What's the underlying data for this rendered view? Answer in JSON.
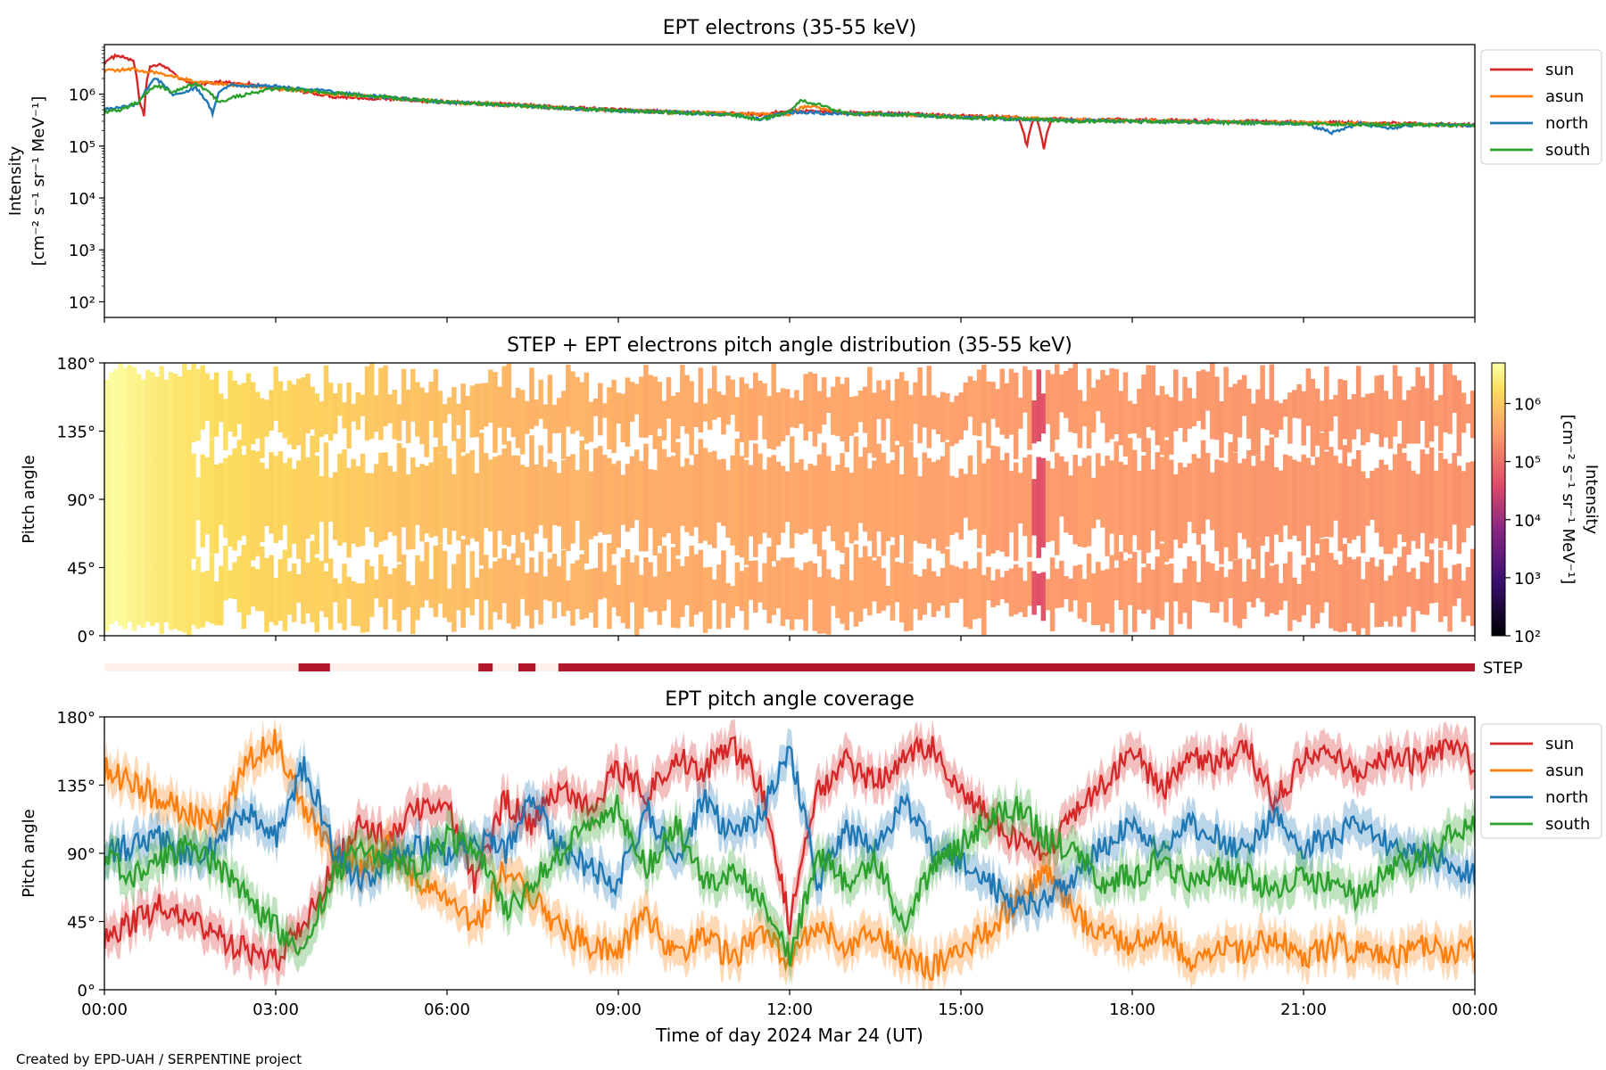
{
  "figure": {
    "xlabel": "Time of day 2024 Mar 24 (UT)",
    "credit": "Created by EPD-UAH / SERPENTINE project",
    "x_tick_labels": [
      "00:00",
      "03:00",
      "06:00",
      "09:00",
      "12:00",
      "15:00",
      "18:00",
      "21:00",
      "00:00"
    ]
  },
  "chart_data": [
    {
      "type": "line",
      "title": "EPT electrons (35-55 keV)",
      "ylabel": "Intensity",
      "ylabel_unit": "[cm⁻² s⁻¹ sr⁻¹ MeV⁻¹]",
      "yscale": "log",
      "ylim": [
        50,
        9000000
      ],
      "y_tick_labels": [
        "10²",
        "10³",
        "10⁴",
        "10⁵",
        "10⁶"
      ],
      "xlim_hours": [
        0,
        24
      ],
      "legend_position": "outside-right",
      "series": [
        {
          "name": "sun",
          "color": "#d62728",
          "x": [
            0,
            0.2,
            0.5,
            0.6,
            0.7,
            0.8,
            1.0,
            1.3,
            1.6,
            2.0,
            2.5,
            3.0,
            3.5,
            4.0,
            4.5,
            5.0,
            6.0,
            7.0,
            8.0,
            9.0,
            10.0,
            11.0,
            11.5,
            12.0,
            13.0,
            14.0,
            15.0,
            16.0,
            16.15,
            16.3,
            16.45,
            16.6,
            17.0,
            18.0,
            19.0,
            20.0,
            21.0,
            22.0,
            23.0,
            24.0
          ],
          "y": [
            4000000,
            5500000,
            4500000,
            800000,
            320000,
            3500000,
            3800000,
            2000000,
            1500000,
            1700000,
            1600000,
            1300000,
            1100000,
            900000,
            850000,
            800000,
            700000,
            650000,
            550000,
            500000,
            450000,
            420000,
            400000,
            480000,
            440000,
            420000,
            380000,
            360000,
            90000,
            360000,
            80000,
            340000,
            320000,
            320000,
            310000,
            300000,
            290000,
            280000,
            270000,
            260000
          ]
        },
        {
          "name": "asun",
          "color": "#ff7f0e",
          "x": [
            0,
            0.5,
            1.0,
            1.5,
            2.0,
            3.0,
            4.0,
            5.0,
            6.0,
            7.0,
            8.0,
            9.0,
            10.0,
            11.0,
            12.0,
            12.3,
            13.0,
            14.0,
            15.0,
            16.0,
            17.0,
            18.0,
            19.0,
            20.0,
            21.0,
            22.0,
            23.0,
            24.0
          ],
          "y": [
            2800000,
            3000000,
            2500000,
            1800000,
            1600000,
            1300000,
            1000000,
            850000,
            700000,
            620000,
            540000,
            480000,
            450000,
            420000,
            400000,
            600000,
            420000,
            400000,
            370000,
            350000,
            320000,
            310000,
            300000,
            290000,
            280000,
            270000,
            260000,
            250000
          ]
        },
        {
          "name": "north",
          "color": "#1f77b4",
          "x": [
            0,
            0.3,
            0.6,
            0.9,
            1.2,
            1.6,
            1.9,
            2.0,
            2.2,
            3.0,
            4.0,
            5.0,
            6.0,
            7.0,
            8.0,
            9.0,
            10.0,
            11.0,
            11.5,
            12.0,
            13.0,
            14.0,
            15.0,
            16.0,
            17.0,
            18.0,
            19.0,
            20.0,
            21.0,
            21.5,
            22.0,
            22.5,
            23.0,
            24.0
          ],
          "y": [
            500000,
            550000,
            650000,
            2000000,
            900000,
            1300000,
            400000,
            1000000,
            1500000,
            1400000,
            1100000,
            850000,
            700000,
            620000,
            540000,
            480000,
            440000,
            400000,
            330000,
            450000,
            420000,
            400000,
            360000,
            330000,
            310000,
            300000,
            290000,
            280000,
            270000,
            180000,
            270000,
            220000,
            260000,
            250000
          ]
        },
        {
          "name": "south",
          "color": "#2ca02c",
          "x": [
            0,
            0.3,
            0.6,
            0.9,
            1.2,
            1.6,
            2.0,
            3.0,
            4.0,
            5.0,
            6.0,
            7.0,
            8.0,
            9.0,
            10.0,
            11.0,
            11.5,
            12.0,
            12.2,
            13.0,
            14.0,
            15.0,
            16.0,
            17.0,
            18.0,
            19.0,
            20.0,
            21.0,
            22.0,
            23.0,
            24.0
          ],
          "y": [
            450000,
            500000,
            700000,
            1500000,
            1100000,
            1600000,
            700000,
            1300000,
            1050000,
            850000,
            700000,
            620000,
            540000,
            480000,
            440000,
            400000,
            320000,
            450000,
            750000,
            420000,
            400000,
            350000,
            330000,
            300000,
            300000,
            290000,
            280000,
            270000,
            260000,
            255000,
            250000
          ]
        }
      ]
    },
    {
      "type": "heatmap",
      "title": "STEP + EPT electrons pitch angle distribution (35-55 keV)",
      "ylabel": "Pitch angle",
      "ylim": [
        0,
        180
      ],
      "y_tick_labels": [
        "0°",
        "45°",
        "90°",
        "135°",
        "180°"
      ],
      "colormap": "inferno",
      "colorbar": {
        "label": "Intensity",
        "unit": "[cm⁻² s⁻¹ sr⁻¹ MeV⁻¹]",
        "scale": "log",
        "range": [
          100,
          5000000
        ],
        "tick_labels": [
          "10²",
          "10³",
          "10⁴",
          "10⁵",
          "10⁶"
        ]
      },
      "time_profile_hours": [
        0,
        1,
        2,
        3,
        5,
        7,
        9,
        12,
        15,
        16.2,
        16.5,
        18,
        21,
        24
      ],
      "time_profile_intensity": [
        4500000,
        2500000,
        1800000,
        1400000,
        900000,
        650000,
        500000,
        420000,
        360000,
        300000,
        320000,
        300000,
        280000,
        260000
      ],
      "dip_hours": [
        16.2,
        16.5
      ],
      "dip_intensity": 25000
    },
    {
      "type": "bar",
      "label": "STEP",
      "orientation": "horizontal-timeline",
      "on_color": "#b2182b",
      "off_color": "#fdf0ea",
      "on_intervals_hours": [
        [
          3.4,
          3.95
        ],
        [
          6.55,
          6.8
        ],
        [
          7.25,
          7.55
        ],
        [
          7.95,
          24
        ]
      ]
    },
    {
      "type": "line",
      "title": "EPT pitch angle coverage",
      "ylabel": "Pitch angle",
      "ylim": [
        0,
        180
      ],
      "y_tick_labels": [
        "0°",
        "45°",
        "90°",
        "135°",
        "180°"
      ],
      "xlim_hours": [
        0,
        24
      ],
      "legend_position": "outside-right",
      "band_halfwidth_deg": 12,
      "series": [
        {
          "name": "sun",
          "color": "#d62728",
          "x": [
            0,
            0.5,
            1.0,
            1.5,
            2.0,
            2.5,
            3.0,
            3.5,
            4.0,
            4.5,
            5.0,
            5.5,
            6.0,
            6.5,
            7.0,
            7.5,
            8.0,
            8.5,
            9.0,
            9.5,
            10.0,
            10.5,
            11.0,
            11.5,
            12.0,
            12.5,
            13.0,
            13.5,
            14.0,
            14.5,
            15.0,
            15.5,
            16.0,
            16.5,
            17.0,
            17.5,
            18.0,
            18.5,
            19.0,
            19.5,
            20.0,
            20.5,
            21.0,
            21.5,
            22.0,
            22.5,
            23.0,
            23.5,
            24.0
          ],
          "y": [
            35,
            45,
            55,
            45,
            35,
            25,
            20,
            45,
            80,
            110,
            100,
            120,
            125,
            70,
            125,
            110,
            135,
            120,
            145,
            130,
            155,
            145,
            160,
            135,
            45,
            130,
            150,
            135,
            155,
            160,
            130,
            115,
            95,
            90,
            120,
            135,
            160,
            130,
            155,
            150,
            160,
            125,
            150,
            160,
            140,
            155,
            150,
            160,
            150
          ]
        },
        {
          "name": "asun",
          "color": "#ff7f0e",
          "x": [
            0,
            0.5,
            1.0,
            1.5,
            2.0,
            2.5,
            3.0,
            3.5,
            4.0,
            4.5,
            5.0,
            5.5,
            6.0,
            6.5,
            7.0,
            7.5,
            8.0,
            8.5,
            9.0,
            9.5,
            10.0,
            10.5,
            11.0,
            11.5,
            12.0,
            12.5,
            13.0,
            13.5,
            14.0,
            14.5,
            15.0,
            15.5,
            16.0,
            16.5,
            17.0,
            17.5,
            18.0,
            18.5,
            19.0,
            19.5,
            20.0,
            20.5,
            21.0,
            21.5,
            22.0,
            22.5,
            23.0,
            23.5,
            24.0
          ],
          "y": [
            145,
            135,
            125,
            115,
            110,
            150,
            165,
            120,
            90,
            80,
            95,
            70,
            60,
            40,
            80,
            60,
            40,
            30,
            25,
            50,
            20,
            35,
            20,
            40,
            20,
            45,
            25,
            40,
            20,
            15,
            25,
            40,
            60,
            75,
            50,
            35,
            30,
            40,
            20,
            30,
            25,
            35,
            20,
            30,
            25,
            20,
            30,
            25,
            30
          ]
        },
        {
          "name": "north",
          "color": "#1f77b4",
          "x": [
            0,
            0.5,
            1.0,
            1.5,
            2.0,
            2.5,
            3.0,
            3.5,
            4.0,
            4.5,
            5.0,
            5.5,
            6.0,
            6.5,
            7.0,
            7.5,
            8.0,
            8.5,
            9.0,
            9.5,
            10.0,
            10.5,
            11.0,
            11.5,
            12.0,
            12.5,
            13.0,
            13.5,
            14.0,
            14.5,
            15.0,
            15.5,
            16.0,
            16.5,
            17.0,
            17.5,
            18.0,
            18.5,
            19.0,
            19.5,
            20.0,
            20.5,
            21.0,
            21.5,
            22.0,
            22.5,
            23.0,
            23.5,
            24.0
          ],
          "y": [
            90,
            95,
            100,
            85,
            95,
            120,
            100,
            150,
            95,
            70,
            85,
            95,
            90,
            100,
            90,
            125,
            95,
            80,
            70,
            120,
            85,
            125,
            100,
            115,
            160,
            70,
            105,
            95,
            125,
            90,
            85,
            70,
            55,
            60,
            75,
            95,
            110,
            90,
            110,
            100,
            90,
            115,
            95,
            100,
            110,
            95,
            90,
            85,
            75
          ]
        },
        {
          "name": "south",
          "color": "#2ca02c",
          "x": [
            0,
            0.5,
            1.0,
            1.5,
            2.0,
            2.5,
            3.0,
            3.5,
            4.0,
            4.5,
            5.0,
            5.5,
            6.0,
            6.5,
            7.0,
            7.5,
            8.0,
            8.5,
            9.0,
            9.5,
            10.0,
            10.5,
            11.0,
            11.5,
            12.0,
            12.5,
            13.0,
            13.5,
            14.0,
            14.5,
            15.0,
            15.5,
            16.0,
            16.5,
            17.0,
            17.5,
            18.0,
            18.5,
            19.0,
            19.5,
            20.0,
            20.5,
            21.0,
            21.5,
            22.0,
            22.5,
            23.0,
            23.5,
            24.0
          ],
          "y": [
            90,
            75,
            85,
            95,
            80,
            60,
            40,
            30,
            75,
            95,
            85,
            80,
            100,
            95,
            50,
            70,
            90,
            110,
            120,
            80,
            110,
            70,
            80,
            60,
            20,
            90,
            70,
            85,
            45,
            80,
            95,
            115,
            120,
            100,
            90,
            70,
            75,
            85,
            70,
            80,
            75,
            65,
            75,
            70,
            60,
            80,
            85,
            100,
            110
          ]
        }
      ]
    }
  ]
}
